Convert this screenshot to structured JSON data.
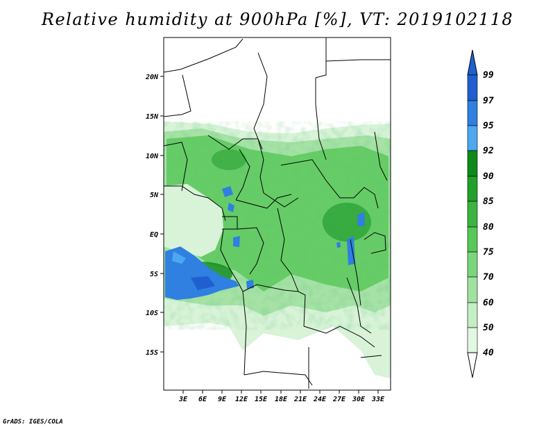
{
  "title": "Relative humidity at 900hPa [%], VT: 2019102118",
  "credit": "GrADS: IGES/COLA",
  "map": {
    "lat_labels": [
      "20N",
      "15N",
      "10N",
      "5N",
      "EQ",
      "5S",
      "10S",
      "15S"
    ],
    "lon_labels": [
      "3E",
      "6E",
      "9E",
      "12E",
      "15E",
      "18E",
      "21E",
      "24E",
      "27E",
      "30E",
      "33E"
    ]
  },
  "colorbar": {
    "levels": [
      "99",
      "97",
      "95",
      "92",
      "90",
      "85",
      "80",
      "75",
      "70",
      "60",
      "50",
      "40"
    ],
    "colors": [
      "#1f5fd0",
      "#2f80e0",
      "#4ea8f0",
      "#0e8a1a",
      "#22a02c",
      "#3cb440",
      "#58c858",
      "#7ad67a",
      "#a0e2a0",
      "#c4eec4",
      "#e2f8e2",
      "#ffffff"
    ]
  }
}
